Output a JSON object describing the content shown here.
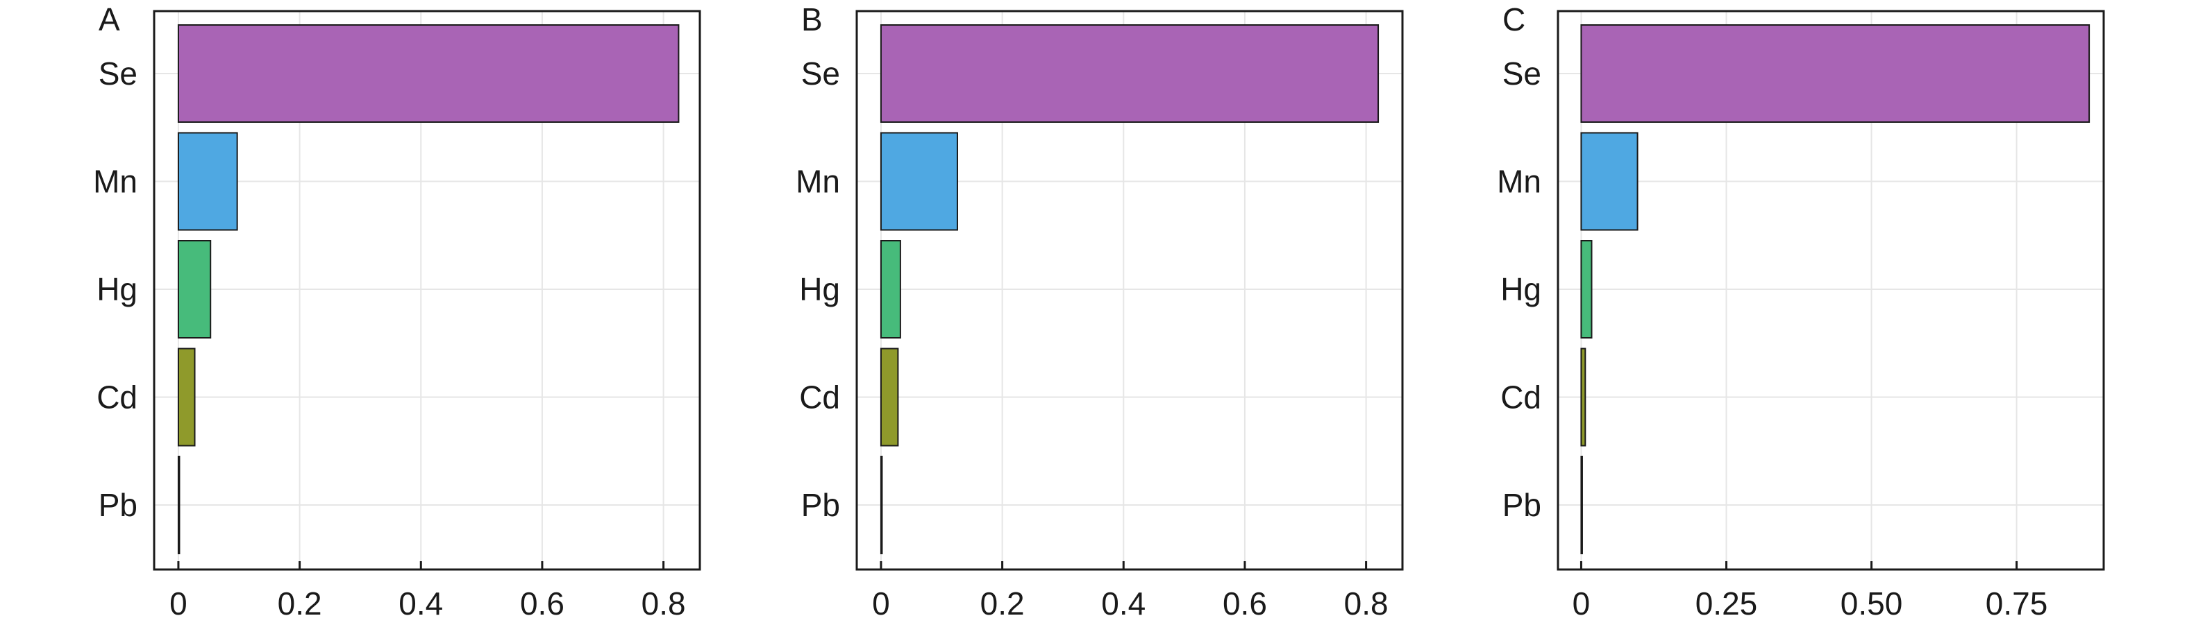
{
  "chart_data": [
    {
      "panel_label": "A",
      "type": "bar",
      "orientation": "horizontal",
      "categories": [
        "Se",
        "Mn",
        "Hg",
        "Cd",
        "Pb"
      ],
      "values": [
        0.825,
        0.097,
        0.053,
        0.027,
        0.001
      ],
      "colors": [
        "#a964b5",
        "#4fa8e2",
        "#47bb7b",
        "#8f9a2b",
        "#d3d3d3"
      ],
      "xlim": [
        -0.04,
        0.86
      ],
      "xticks": [
        0,
        0.2,
        0.4,
        0.6,
        0.8
      ],
      "xtick_labels": [
        "0",
        "0.2",
        "0.4",
        "0.6",
        "0.8"
      ],
      "grid": true
    },
    {
      "panel_label": "B",
      "type": "bar",
      "orientation": "horizontal",
      "categories": [
        "Se",
        "Mn",
        "Hg",
        "Cd",
        "Pb"
      ],
      "values": [
        0.82,
        0.126,
        0.032,
        0.028,
        0.001
      ],
      "colors": [
        "#a964b5",
        "#4fa8e2",
        "#47bb7b",
        "#8f9a2b",
        "#d3d3d3"
      ],
      "xlim": [
        -0.04,
        0.86
      ],
      "xticks": [
        0,
        0.2,
        0.4,
        0.6,
        0.8
      ],
      "xtick_labels": [
        "0",
        "0.2",
        "0.4",
        "0.6",
        "0.8"
      ],
      "grid": true
    },
    {
      "panel_label": "C",
      "type": "bar",
      "orientation": "horizontal",
      "categories": [
        "Se",
        "Mn",
        "Hg",
        "Cd",
        "Pb"
      ],
      "values": [
        0.875,
        0.097,
        0.018,
        0.007,
        0.001
      ],
      "colors": [
        "#a964b5",
        "#4fa8e2",
        "#47bb7b",
        "#8f9a2b",
        "#d3d3d3"
      ],
      "xlim": [
        -0.04,
        0.9
      ],
      "xticks": [
        0,
        0.25,
        0.5,
        0.75
      ],
      "xtick_labels": [
        "0",
        "0.25",
        "0.50",
        "0.75"
      ],
      "grid": true
    }
  ]
}
